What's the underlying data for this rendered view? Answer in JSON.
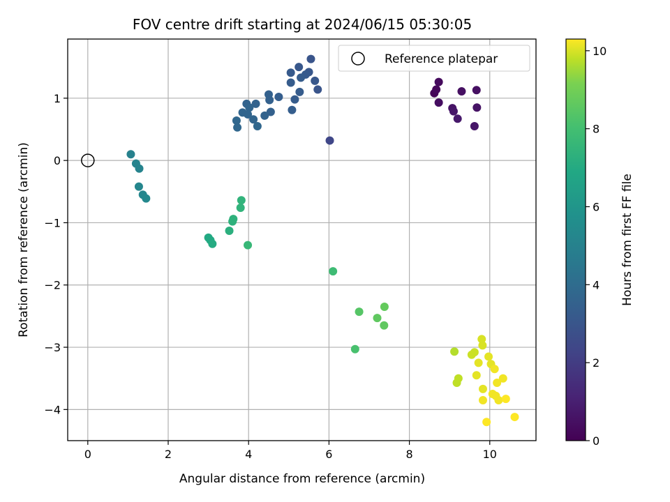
{
  "chart_data": {
    "type": "scatter",
    "title": "FOV centre drift starting at 2024/06/15 05:30:05",
    "xlabel": "Angular distance from reference (arcmin)",
    "ylabel": "Rotation from reference (arcmin)",
    "xlim": [
      -0.5,
      11.15
    ],
    "ylim": [
      -4.5,
      1.95
    ],
    "xticks": [
      0,
      2,
      4,
      6,
      8,
      10
    ],
    "yticks": [
      -4,
      -3,
      -2,
      -1,
      0,
      1
    ],
    "xtick_labels": [
      "0",
      "2",
      "4",
      "6",
      "8",
      "10"
    ],
    "ytick_labels": [
      "−4",
      "−3",
      "−2",
      "−1",
      "0",
      "1"
    ],
    "grid": true,
    "legend": {
      "placement": "upper-right",
      "entries": [
        "Reference platepar"
      ]
    },
    "reference_point": {
      "x": 0,
      "y": 0
    },
    "colorbar": {
      "label": "Hours from first FF file",
      "range": [
        0,
        10.3
      ],
      "ticks": [
        0,
        2,
        4,
        6,
        8,
        10
      ],
      "tick_labels": [
        "0",
        "2",
        "4",
        "6",
        "8",
        "10"
      ],
      "colormap": "viridis"
    },
    "series": [
      {
        "points": [
          {
            "x": 8.62,
            "y": 1.08,
            "c": 0.1
          },
          {
            "x": 8.67,
            "y": 1.14,
            "c": 0.2
          },
          {
            "x": 8.73,
            "y": 1.26,
            "c": 0.3
          },
          {
            "x": 8.73,
            "y": 0.93,
            "c": 0.4
          },
          {
            "x": 9.3,
            "y": 1.11,
            "c": 0.5
          },
          {
            "x": 9.07,
            "y": 0.84,
            "c": 0.6
          },
          {
            "x": 9.1,
            "y": 0.79,
            "c": 0.7
          },
          {
            "x": 9.2,
            "y": 0.67,
            "c": 0.8
          },
          {
            "x": 9.67,
            "y": 1.13,
            "c": 0.5
          },
          {
            "x": 9.68,
            "y": 0.85,
            "c": 0.6
          },
          {
            "x": 9.62,
            "y": 0.55,
            "c": 0.7
          },
          {
            "x": 6.02,
            "y": 0.32,
            "c": 2.4
          },
          {
            "x": 5.55,
            "y": 1.63,
            "c": 3.0
          },
          {
            "x": 5.25,
            "y": 1.5,
            "c": 3.1
          },
          {
            "x": 5.05,
            "y": 1.41,
            "c": 3.2
          },
          {
            "x": 5.5,
            "y": 1.42,
            "c": 3.1
          },
          {
            "x": 5.42,
            "y": 1.38,
            "c": 3.2
          },
          {
            "x": 5.3,
            "y": 1.33,
            "c": 3.3
          },
          {
            "x": 5.05,
            "y": 1.25,
            "c": 3.3
          },
          {
            "x": 5.65,
            "y": 1.28,
            "c": 3.1
          },
          {
            "x": 5.72,
            "y": 1.14,
            "c": 3.0
          },
          {
            "x": 5.27,
            "y": 1.1,
            "c": 3.3
          },
          {
            "x": 4.75,
            "y": 1.02,
            "c": 3.4
          },
          {
            "x": 4.5,
            "y": 1.06,
            "c": 3.5
          },
          {
            "x": 4.52,
            "y": 0.97,
            "c": 3.5
          },
          {
            "x": 5.15,
            "y": 0.98,
            "c": 3.3
          },
          {
            "x": 5.08,
            "y": 0.81,
            "c": 3.4
          },
          {
            "x": 3.95,
            "y": 0.91,
            "c": 3.6
          },
          {
            "x": 4.18,
            "y": 0.91,
            "c": 3.6
          },
          {
            "x": 4.02,
            "y": 0.85,
            "c": 3.7
          },
          {
            "x": 3.85,
            "y": 0.77,
            "c": 3.7
          },
          {
            "x": 3.98,
            "y": 0.74,
            "c": 3.7
          },
          {
            "x": 4.55,
            "y": 0.78,
            "c": 3.5
          },
          {
            "x": 4.4,
            "y": 0.72,
            "c": 3.6
          },
          {
            "x": 4.12,
            "y": 0.66,
            "c": 3.7
          },
          {
            "x": 3.7,
            "y": 0.64,
            "c": 3.8
          },
          {
            "x": 4.22,
            "y": 0.55,
            "c": 3.8
          },
          {
            "x": 3.72,
            "y": 0.53,
            "c": 3.8
          },
          {
            "x": 1.07,
            "y": 0.1,
            "c": 5.0
          },
          {
            "x": 1.2,
            "y": -0.05,
            "c": 5.1
          },
          {
            "x": 1.28,
            "y": -0.13,
            "c": 5.1
          },
          {
            "x": 1.27,
            "y": -0.42,
            "c": 5.2
          },
          {
            "x": 1.37,
            "y": -0.55,
            "c": 5.2
          },
          {
            "x": 1.45,
            "y": -0.61,
            "c": 5.3
          },
          {
            "x": 3.0,
            "y": -1.24,
            "c": 6.9
          },
          {
            "x": 3.05,
            "y": -1.28,
            "c": 6.9
          },
          {
            "x": 3.1,
            "y": -1.34,
            "c": 7.0
          },
          {
            "x": 3.52,
            "y": -1.13,
            "c": 7.2
          },
          {
            "x": 3.6,
            "y": -0.98,
            "c": 7.3
          },
          {
            "x": 3.62,
            "y": -0.94,
            "c": 7.3
          },
          {
            "x": 3.8,
            "y": -0.76,
            "c": 7.4
          },
          {
            "x": 3.82,
            "y": -0.64,
            "c": 7.4
          },
          {
            "x": 3.98,
            "y": -1.36,
            "c": 7.6
          },
          {
            "x": 6.1,
            "y": -1.78,
            "c": 7.8
          },
          {
            "x": 6.75,
            "y": -2.43,
            "c": 8.4
          },
          {
            "x": 6.65,
            "y": -3.03,
            "c": 8.1
          },
          {
            "x": 7.2,
            "y": -2.53,
            "c": 8.6
          },
          {
            "x": 7.38,
            "y": -2.35,
            "c": 8.7
          },
          {
            "x": 7.37,
            "y": -2.65,
            "c": 8.6
          },
          {
            "x": 9.12,
            "y": -3.07,
            "c": 9.7
          },
          {
            "x": 9.22,
            "y": -3.5,
            "c": 9.8
          },
          {
            "x": 9.18,
            "y": -3.57,
            "c": 9.8
          },
          {
            "x": 9.55,
            "y": -3.12,
            "c": 9.9
          },
          {
            "x": 9.62,
            "y": -3.08,
            "c": 9.9
          },
          {
            "x": 9.8,
            "y": -2.87,
            "c": 10.0
          },
          {
            "x": 9.82,
            "y": -2.97,
            "c": 10.0
          },
          {
            "x": 9.72,
            "y": -3.25,
            "c": 10.1
          },
          {
            "x": 9.67,
            "y": -3.45,
            "c": 10.1
          },
          {
            "x": 9.97,
            "y": -3.15,
            "c": 10.1
          },
          {
            "x": 10.03,
            "y": -3.27,
            "c": 10.1
          },
          {
            "x": 10.12,
            "y": -3.35,
            "c": 10.2
          },
          {
            "x": 9.83,
            "y": -3.67,
            "c": 10.1
          },
          {
            "x": 9.83,
            "y": -3.85,
            "c": 10.2
          },
          {
            "x": 10.07,
            "y": -3.75,
            "c": 10.2
          },
          {
            "x": 10.18,
            "y": -3.57,
            "c": 10.2
          },
          {
            "x": 10.15,
            "y": -3.78,
            "c": 10.2
          },
          {
            "x": 10.33,
            "y": -3.5,
            "c": 10.2
          },
          {
            "x": 10.22,
            "y": -3.85,
            "c": 10.2
          },
          {
            "x": 10.4,
            "y": -3.83,
            "c": 10.3
          },
          {
            "x": 9.92,
            "y": -4.2,
            "c": 10.3
          },
          {
            "x": 10.62,
            "y": -4.12,
            "c": 10.3
          }
        ]
      }
    ]
  }
}
